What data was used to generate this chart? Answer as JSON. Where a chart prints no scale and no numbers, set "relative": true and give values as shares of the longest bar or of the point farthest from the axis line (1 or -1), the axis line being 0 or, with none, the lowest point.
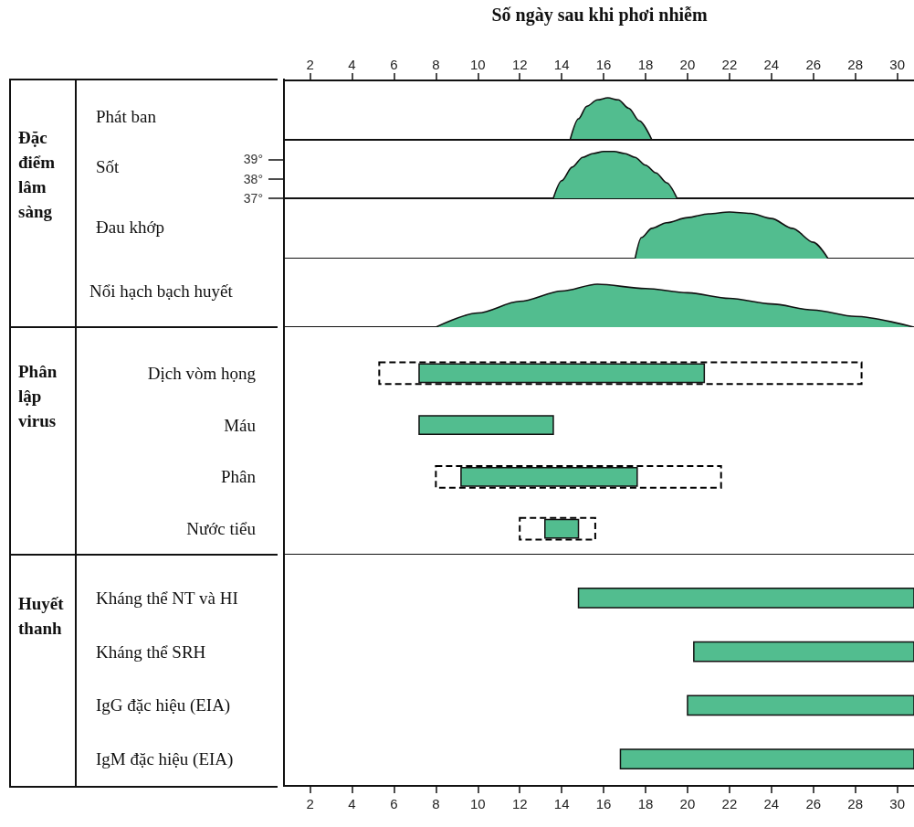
{
  "chart_data": [
    {
      "type": "area",
      "ylabel": "Phát ban",
      "relative": true,
      "x2label": "Số ngày sau khi phơi nhiễm",
      "x2lim": [
        0.8,
        30.8
      ],
      "x2ticks": [
        2,
        4,
        6,
        8,
        10,
        12,
        14,
        16,
        18,
        20,
        22,
        24,
        26,
        28,
        30
      ],
      "xlim": [
        0.8,
        30.8
      ],
      "tick_labels": false,
      "color": "#52bd8f",
      "x": [
        14.4,
        14.8,
        15.2,
        15.7,
        16.2,
        16.7,
        17.2,
        17.7,
        18.3
      ],
      "values": [
        0,
        0.5,
        0.8,
        0.95,
        1,
        0.95,
        0.75,
        0.45,
        0
      ]
    },
    {
      "type": "area",
      "annotations": [
        "Đặc điểm lâm sàng"
      ],
      "ylabel": "Sốt",
      "xlim": [
        0.8,
        30.8
      ],
      "ylim": [
        37,
        40
      ],
      "yticks": [
        {
          "value": 37,
          "label": "37°"
        },
        {
          "value": 38,
          "label": "38°"
        },
        {
          "value": 39,
          "label": "39°"
        }
      ],
      "tick_labels": "y",
      "color": "#52bd8f",
      "x": [
        13.6,
        14,
        14.5,
        15,
        15.5,
        16,
        16.5,
        17,
        17.5,
        18,
        18.5,
        19,
        19.5
      ],
      "values": [
        37,
        37.9,
        38.6,
        39.1,
        39.3,
        39.4,
        39.4,
        39.3,
        39.1,
        38.7,
        38.3,
        37.8,
        37
      ]
    },
    {
      "type": "area",
      "ylabel": "Đau khớp",
      "relative": true,
      "xlim": [
        0.8,
        30.8
      ],
      "tick_labels": false,
      "color": "#52bd8f",
      "x": [
        17.5,
        17.8,
        18.3,
        19,
        20,
        21,
        22,
        23,
        24,
        25,
        26,
        26.7
      ],
      "values": [
        0,
        0.45,
        0.65,
        0.77,
        0.88,
        0.96,
        1,
        0.97,
        0.86,
        0.65,
        0.35,
        0
      ]
    },
    {
      "type": "area",
      "ylabel": "Nổi hạch bạch huyết",
      "relative": true,
      "xlim": [
        0.8,
        30.8
      ],
      "tick_labels": false,
      "color": "#52bd8f",
      "x": [
        8,
        10,
        12,
        14,
        15.7,
        18,
        20,
        22,
        24,
        26,
        28,
        30.8
      ],
      "values": [
        0,
        0.33,
        0.6,
        0.84,
        1,
        0.9,
        0.8,
        0.67,
        0.54,
        0.4,
        0.25,
        0
      ]
    },
    {
      "type": "bar",
      "title": "Phân lập virus",
      "orientation": "horizontal",
      "xlim": [
        0.8,
        30.8
      ],
      "tick_labels": "y",
      "categories": [
        "Dịch vòm họng",
        "Máu",
        "Phân",
        "Nước tiểu"
      ],
      "series": [
        {
          "color": "#000000",
          "line_style": "dashed",
          "base": [
            5.3,
            null,
            8.0,
            12.0
          ],
          "values": [
            23.0,
            null,
            13.6,
            3.6
          ]
        },
        {
          "color": "#52bd8f",
          "base": [
            7.2,
            7.2,
            9.2,
            13.2
          ],
          "values": [
            13.6,
            6.4,
            8.4,
            1.6
          ]
        }
      ]
    },
    {
      "type": "bar",
      "title": "Huyết thanh",
      "orientation": "horizontal",
      "xlim": [
        0.8,
        30.8
      ],
      "xticks": [
        2,
        4,
        6,
        8,
        10,
        12,
        14,
        16,
        18,
        20,
        22,
        24,
        26,
        28,
        30
      ],
      "categories": [
        "Kháng thể NT và HI",
        "Kháng thể SRH",
        "IgG đặc hiệu (EIA)",
        "IgM đặc hiệu (EIA)"
      ],
      "series": [
        {
          "color": "#52bd8f",
          "base": [
            14.8,
            20.3,
            20.0,
            16.8
          ],
          "values": [
            16.0,
            10.5,
            10.8,
            14.0
          ]
        }
      ]
    }
  ]
}
